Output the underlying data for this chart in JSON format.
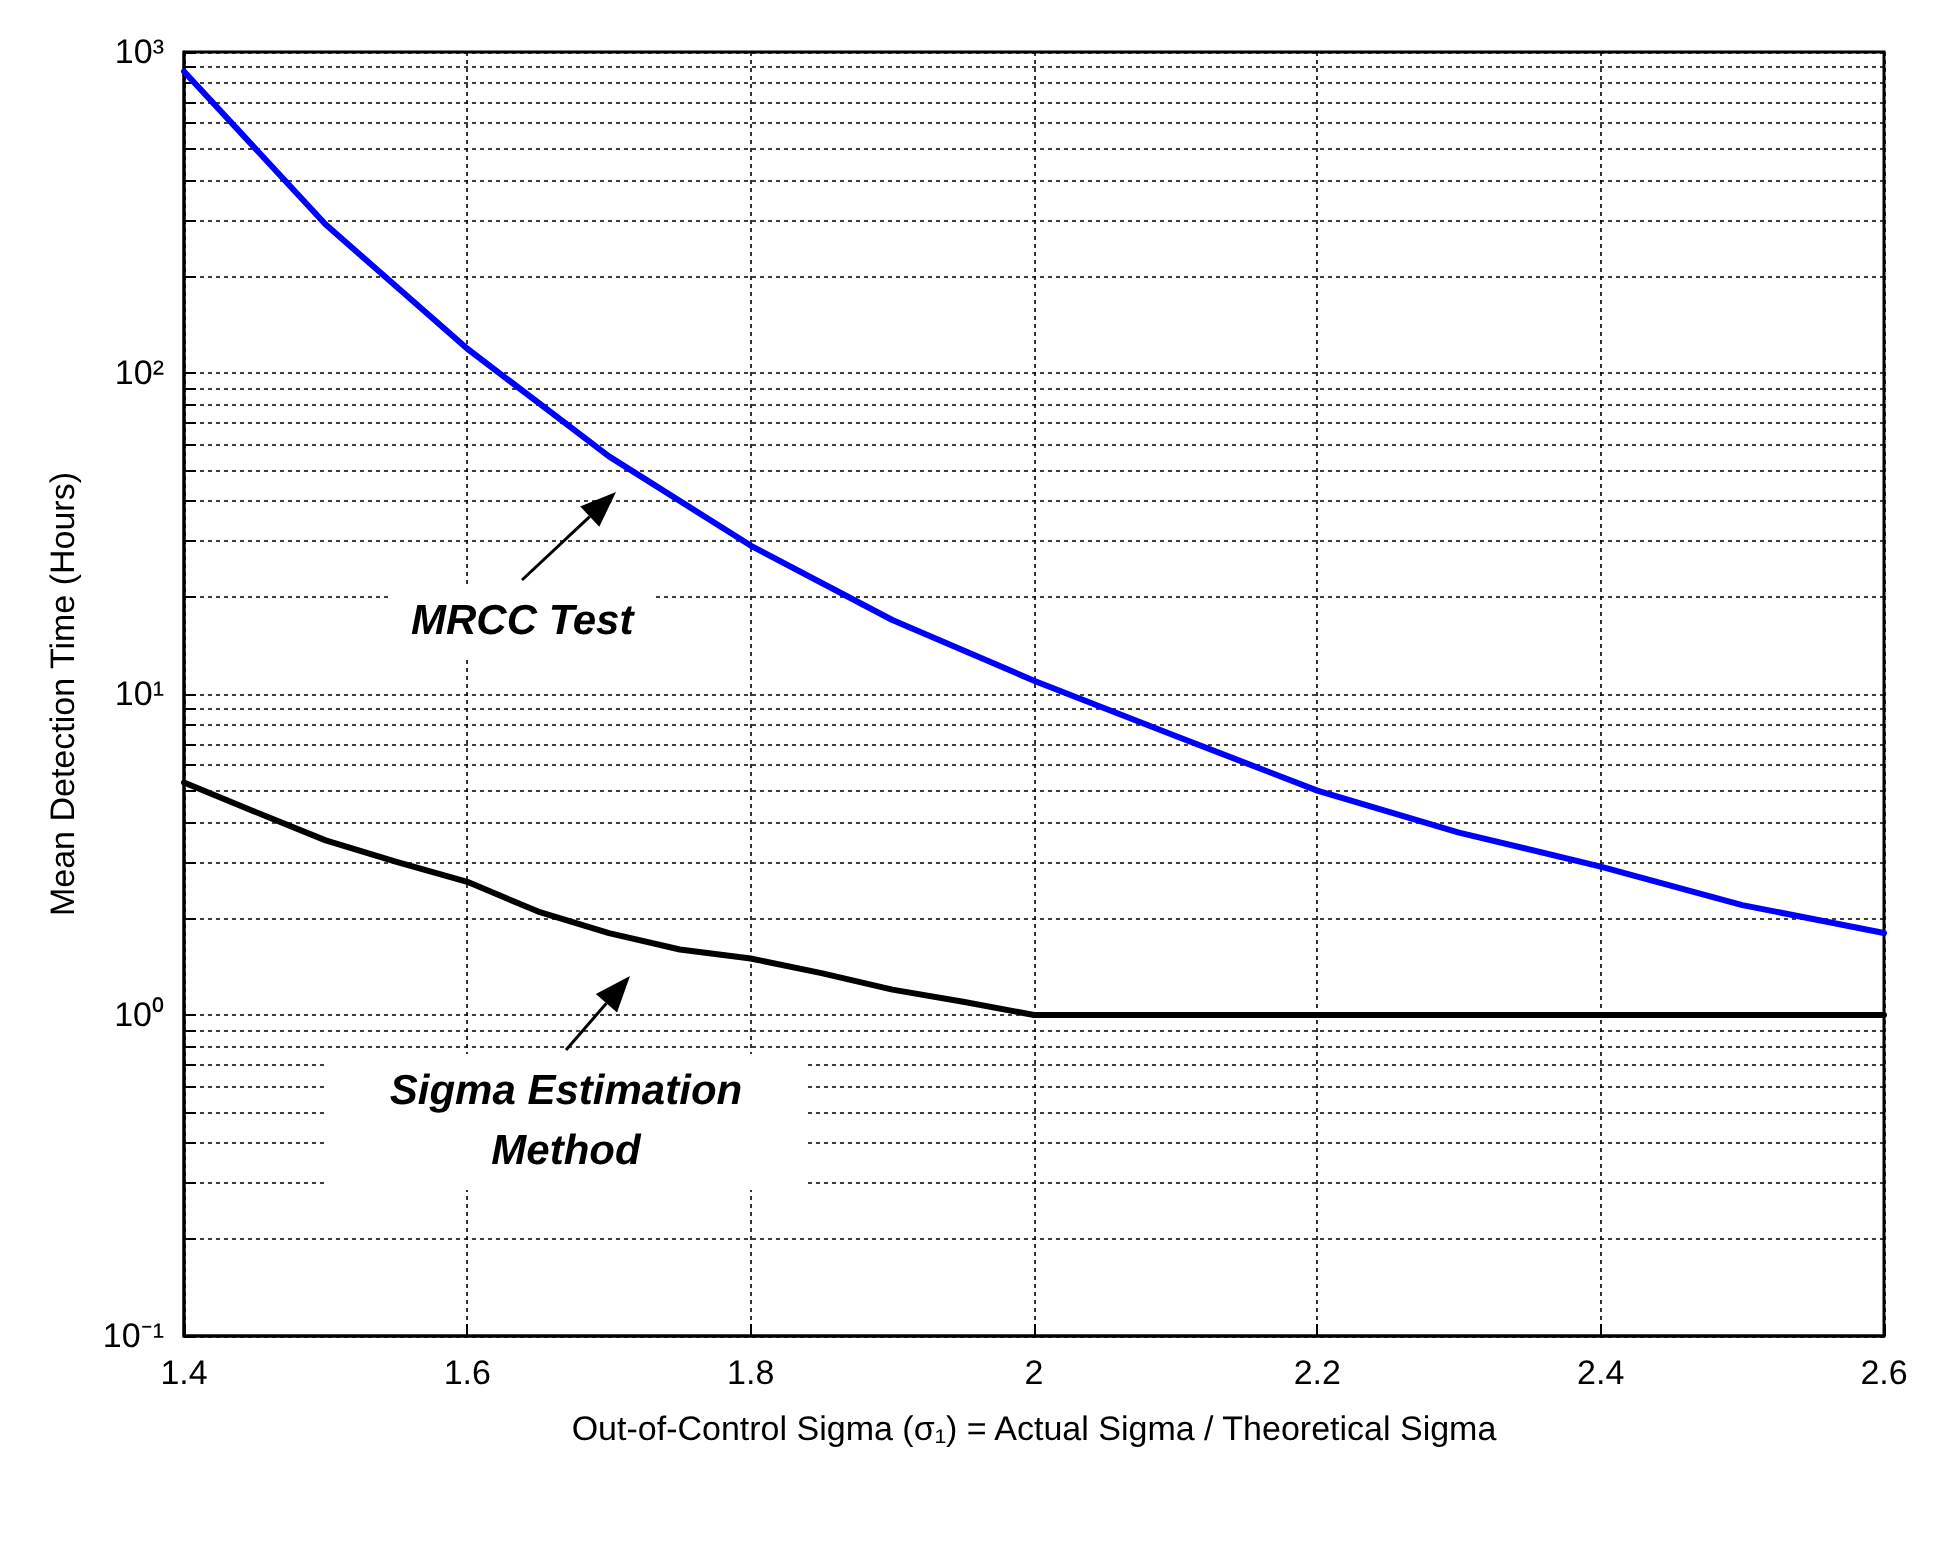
{
  "chart_data": {
    "type": "line",
    "xlabel": "Out-of-Control Sigma (σ₁) = Actual Sigma / Theoretical Sigma",
    "ylabel": "Mean Detection Time (Hours)",
    "log": "y",
    "grid": true,
    "marker": "none",
    "line_style": "solid",
    "xlim": [
      1.4,
      2.6
    ],
    "xticks": [
      {
        "value": 1.4,
        "label": "1.4"
      },
      {
        "value": 1.6,
        "label": "1.6"
      },
      {
        "value": 1.8,
        "label": "1.8"
      },
      {
        "value": 2,
        "label": "2"
      },
      {
        "value": 2.2,
        "label": "2.2"
      },
      {
        "value": 2.4,
        "label": "2.4"
      },
      {
        "value": 2.6,
        "label": "2.6"
      }
    ],
    "ylim": [
      0.1,
      1000
    ],
    "yticks": [
      {
        "value": 0.1,
        "label": "10⁻¹"
      },
      {
        "value": 0.2,
        "label": null
      },
      {
        "value": 0.3,
        "label": null
      },
      {
        "value": 0.4,
        "label": null
      },
      {
        "value": 0.5,
        "label": null
      },
      {
        "value": 0.6,
        "label": null
      },
      {
        "value": 0.7,
        "label": null
      },
      {
        "value": 0.8,
        "label": null
      },
      {
        "value": 0.9,
        "label": null
      },
      {
        "value": 1,
        "label": "10⁰"
      },
      {
        "value": 2,
        "label": null
      },
      {
        "value": 3,
        "label": null
      },
      {
        "value": 4,
        "label": null
      },
      {
        "value": 5,
        "label": null
      },
      {
        "value": 6,
        "label": null
      },
      {
        "value": 7,
        "label": null
      },
      {
        "value": 8,
        "label": null
      },
      {
        "value": 9,
        "label": null
      },
      {
        "value": 10,
        "label": "10¹"
      },
      {
        "value": 20,
        "label": null
      },
      {
        "value": 30,
        "label": null
      },
      {
        "value": 40,
        "label": null
      },
      {
        "value": 50,
        "label": null
      },
      {
        "value": 60,
        "label": null
      },
      {
        "value": 70,
        "label": null
      },
      {
        "value": 80,
        "label": null
      },
      {
        "value": 90,
        "label": null
      },
      {
        "value": 100,
        "label": "10²"
      },
      {
        "value": 200,
        "label": null
      },
      {
        "value": 300,
        "label": null
      },
      {
        "value": 400,
        "label": null
      },
      {
        "value": 500,
        "label": null
      },
      {
        "value": 600,
        "label": null
      },
      {
        "value": 700,
        "label": null
      },
      {
        "value": 800,
        "label": null
      },
      {
        "value": 900,
        "label": null
      },
      {
        "value": 1000,
        "label": "10³"
      }
    ],
    "series": [
      {
        "color": "#0000ff",
        "x": [
          1.4,
          1.5,
          1.6,
          1.7,
          1.8,
          1.9,
          2.0,
          2.1,
          2.2,
          2.3,
          2.4,
          2.5,
          2.6
        ],
        "values": [
          870,
          290,
          119,
          55,
          29,
          17,
          11,
          7.4,
          5.0,
          3.7,
          2.9,
          2.2,
          1.8
        ]
      },
      {
        "color": "#000000",
        "x": [
          1.4,
          1.45,
          1.5,
          1.55,
          1.6,
          1.65,
          1.7,
          1.75,
          1.8,
          1.85,
          1.9,
          1.95,
          2.0,
          2.6
        ],
        "values": [
          5.3,
          4.3,
          3.5,
          3.0,
          2.6,
          2.1,
          1.8,
          1.6,
          1.5,
          1.35,
          1.2,
          1.1,
          1,
          1
        ]
      }
    ],
    "annotations": [
      "MRCC Test",
      "Sigma Estimation Method"
    ]
  }
}
